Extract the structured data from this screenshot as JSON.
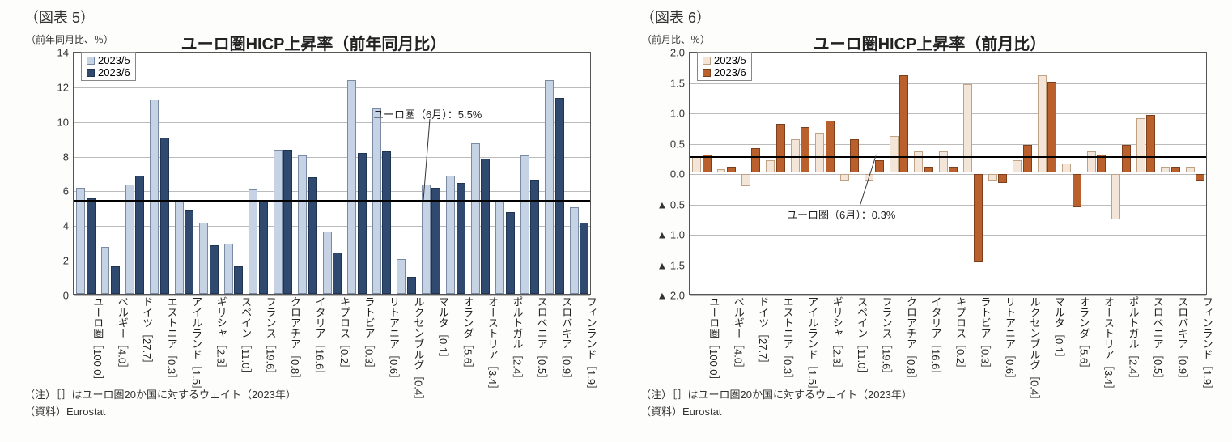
{
  "categories": [
    "ユーロ圏［100.0］",
    "ベルギー［4.0］",
    "ドイツ［27.7］",
    "エストニア［0.3］",
    "アイルランド［1.5］",
    "ギリシャ［2.3］",
    "スペイン［11.0］",
    "フランス［19.6］",
    "クロアチア［0.8］",
    "イタリア［16.6］",
    "キプロス［0.2］",
    "ラトビア［0.3］",
    "リトアニア［0.6］",
    "ルクセンブルグ［0.4］",
    "マルタ［0.1］",
    "オランダ［5.6］",
    "オーストリア［3.4］",
    "ポルトガル［2.4］",
    "スロベニア［0.5］",
    "スロバキア［0.9］",
    "フィンランド［1.9］"
  ],
  "chart5": {
    "fig_label": "（図表 5）",
    "title": "ユーロ圏HICP上昇率（前年同月比）",
    "y_unit": "（前年同月比、％）",
    "ylim": [
      0,
      14
    ],
    "ytick_step": 2,
    "yticks": [
      "0",
      "2",
      "4",
      "6",
      "8",
      "10",
      "12",
      "14"
    ],
    "series": [
      {
        "name": "2023/5",
        "color": "#c6d3e5",
        "border": "#7a8aa3",
        "values": [
          6.1,
          2.7,
          6.3,
          11.2,
          5.4,
          4.1,
          2.9,
          6.0,
          8.3,
          8.0,
          3.6,
          12.3,
          10.7,
          2.0,
          6.3,
          6.8,
          8.7,
          5.4,
          8.0,
          12.3,
          5.0
        ]
      },
      {
        "name": "2023/6",
        "color": "#2f4a6e",
        "border": "#1f3451",
        "values": [
          5.5,
          1.6,
          6.8,
          9.0,
          4.8,
          2.8,
          1.6,
          5.3,
          8.3,
          6.7,
          2.4,
          8.1,
          8.2,
          1.0,
          6.1,
          6.4,
          7.8,
          4.7,
          6.6,
          11.3,
          4.1
        ]
      }
    ],
    "ref": {
      "value": 5.5,
      "label": "ユーロ圏（6月）：5.5%"
    },
    "note1": "（注）［］はユーロ圏20か国に対するウェイト（2023年）",
    "note2": "（資料）Eurostat"
  },
  "chart6": {
    "fig_label": "（図表 6）",
    "title": "ユーロ圏HICP上昇率（前月比）",
    "y_unit": "（前月比、％）",
    "ylim": [
      -2.0,
      2.0
    ],
    "ytick_step": 0.5,
    "yticks": [
      "▲ 2.0",
      "▲ 1.5",
      "▲ 1.0",
      "▲ 0.5",
      "0.0",
      "0.5",
      "1.0",
      "1.5",
      "2.0"
    ],
    "series": [
      {
        "name": "2023/5",
        "color": "#f3e6d8",
        "border": "#bfa183",
        "values": [
          0.25,
          0.05,
          -0.2,
          0.2,
          0.55,
          0.65,
          -0.1,
          -0.1,
          0.6,
          0.35,
          0.35,
          1.45,
          -0.1,
          0.2,
          1.6,
          0.15,
          0.35,
          -0.75,
          0.9,
          0.1,
          0.1
        ]
      },
      {
        "name": "2023/6",
        "color": "#b9602d",
        "border": "#7d3e1c",
        "values": [
          0.3,
          0.1,
          0.4,
          0.8,
          0.75,
          0.85,
          0.55,
          0.2,
          1.6,
          0.1,
          0.1,
          -1.45,
          -0.15,
          0.45,
          1.5,
          -0.55,
          0.3,
          0.45,
          0.95,
          0.1,
          -0.1
        ]
      }
    ],
    "ref": {
      "value": 0.3,
      "label": "ユーロ圏（6月）：0.3%"
    },
    "note1": "（注）［］はユーロ圏20か国に対するウェイト（2023年）",
    "note2": "（資料）Eurostat"
  }
}
